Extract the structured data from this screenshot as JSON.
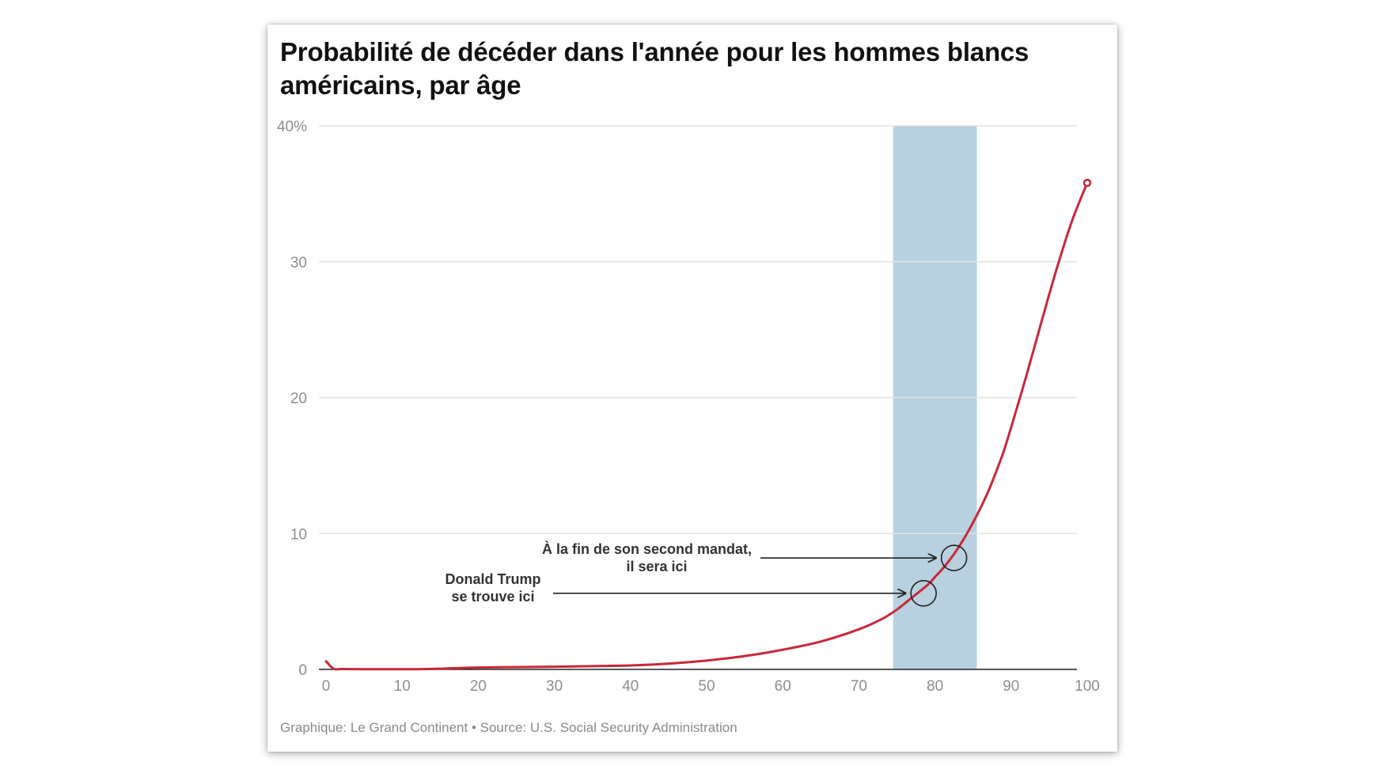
{
  "title": "Probabilité de décéder dans l'année pour les hommes blancs américains, par âge",
  "footer": {
    "credit": "Graphique: Le Grand Continent",
    "separator": " • ",
    "source": "Source: U.S. Social Security Administration"
  },
  "annotations": {
    "second_term": {
      "line1": "À la fin de son second mandat,",
      "line2": "il sera ici"
    },
    "trump": {
      "line1": "Donald Trump",
      "line2": "se trouve ici"
    }
  },
  "chart_data": {
    "type": "line",
    "title": "Probabilité de décéder dans l'année pour les hommes blancs américains, par âge",
    "xlabel": "",
    "ylabel": "",
    "xlim": [
      0,
      100
    ],
    "ylim": [
      0,
      40
    ],
    "x_ticks": [
      0,
      10,
      20,
      30,
      40,
      50,
      60,
      70,
      80,
      90,
      100
    ],
    "x_tick_labels": [
      "0",
      "10",
      "20",
      "30",
      "40",
      "50",
      "60",
      "70",
      "80",
      "90",
      "100"
    ],
    "y_ticks": [
      0,
      10,
      20,
      30,
      40
    ],
    "y_tick_labels": [
      "0",
      "10",
      "20",
      "30",
      "40%"
    ],
    "grid": true,
    "highlight_band": {
      "x_from": 74.5,
      "x_to": 85.5,
      "color": "#b8d0df"
    },
    "marked_points": [
      {
        "x": 78.5,
        "y": 5.6,
        "annotation": "trump"
      },
      {
        "x": 82.5,
        "y": 8.2,
        "annotation": "second_term"
      }
    ],
    "series": [
      {
        "color": "#c8283a",
        "x": [
          0,
          1,
          2,
          3,
          5,
          8,
          10,
          12,
          15,
          18,
          20,
          25,
          30,
          35,
          40,
          45,
          50,
          55,
          60,
          65,
          70,
          73,
          75,
          77,
          79,
          80,
          81,
          82,
          83,
          84,
          85,
          86,
          87,
          88,
          89,
          90,
          92,
          94,
          96,
          98,
          100
        ],
        "y": [
          0.6,
          0.04,
          0.03,
          0.02,
          0.015,
          0.012,
          0.012,
          0.015,
          0.05,
          0.11,
          0.14,
          0.17,
          0.2,
          0.24,
          0.29,
          0.42,
          0.65,
          0.98,
          1.45,
          2.05,
          2.95,
          3.7,
          4.4,
          5.3,
          6.2,
          6.8,
          7.4,
          8.1,
          8.9,
          9.8,
          10.8,
          11.9,
          13.1,
          14.5,
          16.0,
          17.8,
          21.6,
          25.6,
          29.5,
          33.0,
          35.8
        ]
      }
    ]
  }
}
